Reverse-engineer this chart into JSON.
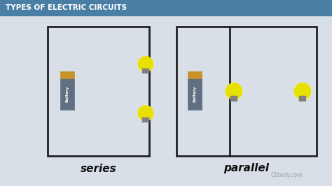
{
  "title": "TYPES OF ELECTRIC CIRCUITS",
  "title_color": "#ffffff",
  "title_bg_color": "#4a7fa5",
  "bg_color": "#d8dfe6",
  "box_color": "#222222",
  "label_series": "series",
  "label_parallel": "parallel",
  "label_color": "#111111",
  "watermark": "OStudy.com",
  "watermark_color": "#888888",
  "battery_color_top": "#c8922a",
  "battery_color_body": "#607080",
  "bulb_color": "#f5f000",
  "bulb_outline": "#888888"
}
